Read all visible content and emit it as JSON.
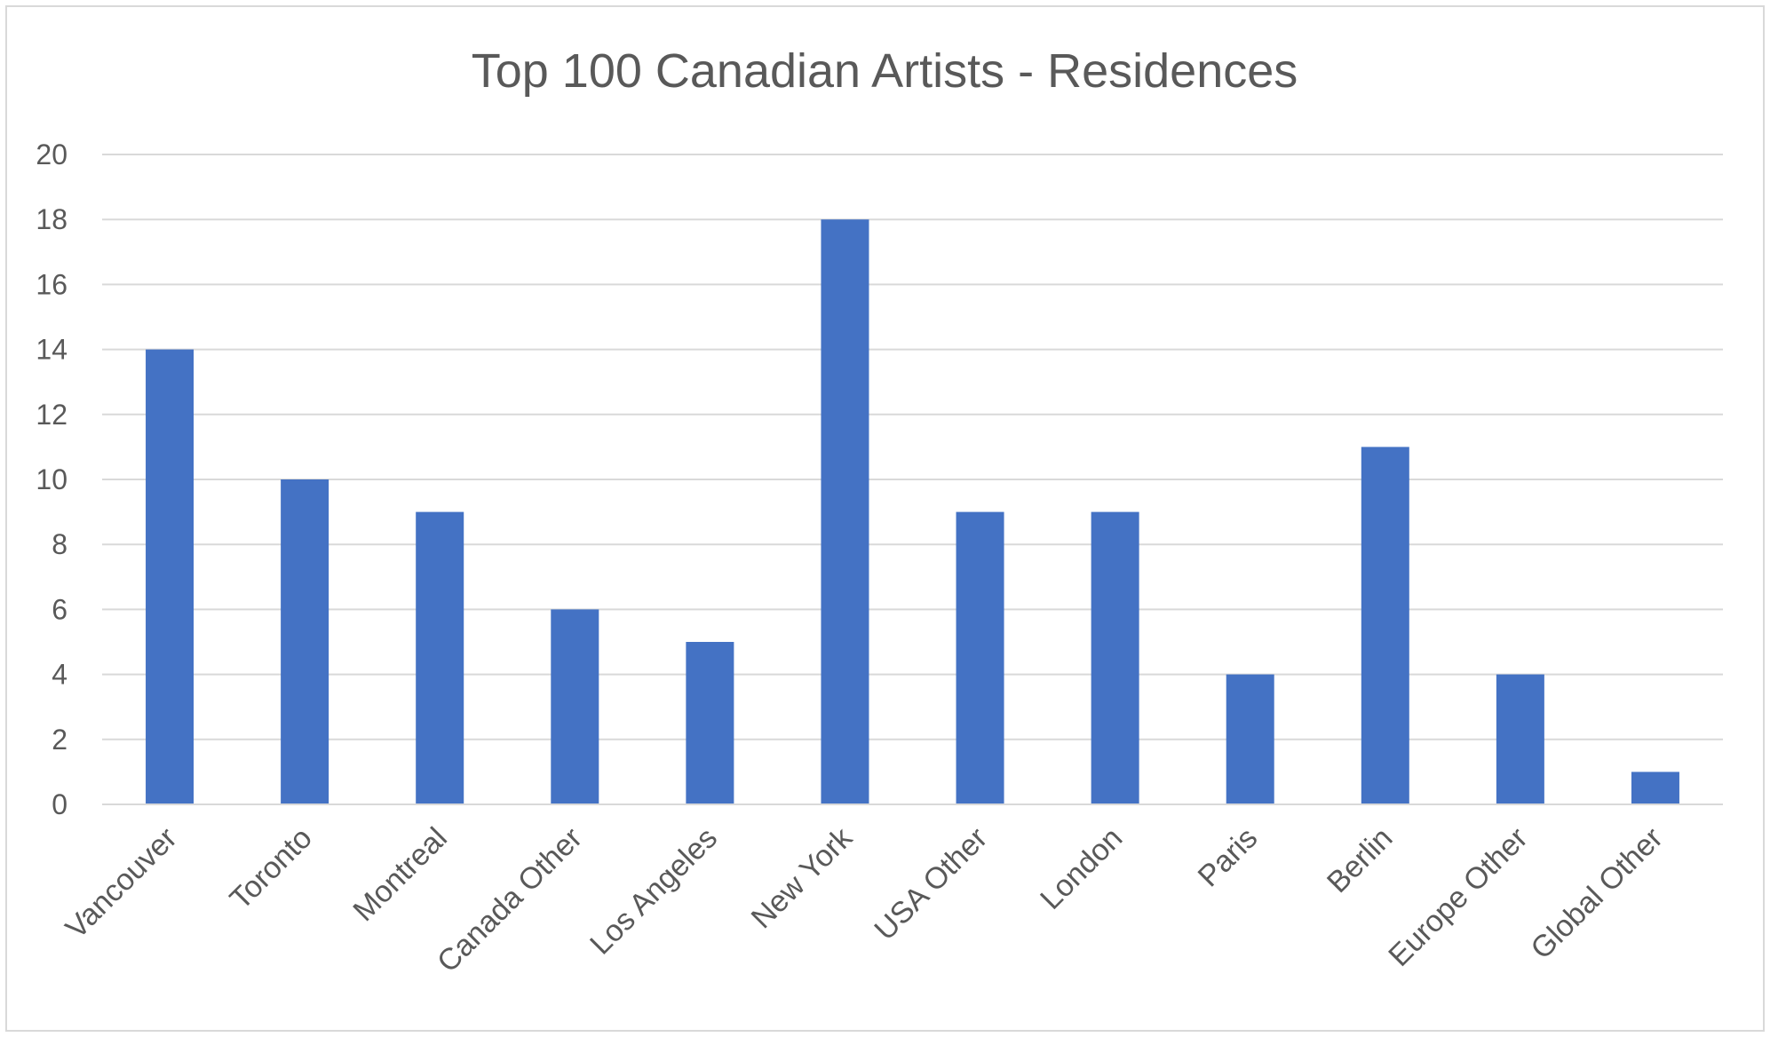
{
  "chart_data": {
    "type": "bar",
    "title": "Top 100 Canadian Artists - Residences",
    "xlabel": "",
    "ylabel": "",
    "categories": [
      "Vancouver",
      "Toronto",
      "Montreal",
      "Canada Other",
      "Los Angeles",
      "New York",
      "USA Other",
      "London",
      "Paris",
      "Berlin",
      "Europe Other",
      "Global Other"
    ],
    "values": [
      14,
      10,
      9,
      6,
      5,
      18,
      9,
      9,
      4,
      11,
      4,
      1
    ],
    "ylim": [
      0,
      20
    ],
    "yticks": [
      "0",
      "2",
      "4",
      "6",
      "8",
      "10",
      "12",
      "14",
      "16",
      "18",
      "20"
    ],
    "grid": true,
    "legend": "none",
    "colors": {
      "bar": "#4472c4",
      "grid": "#d9d9d9",
      "text": "#595959",
      "frame": "#d9d9d9"
    }
  }
}
